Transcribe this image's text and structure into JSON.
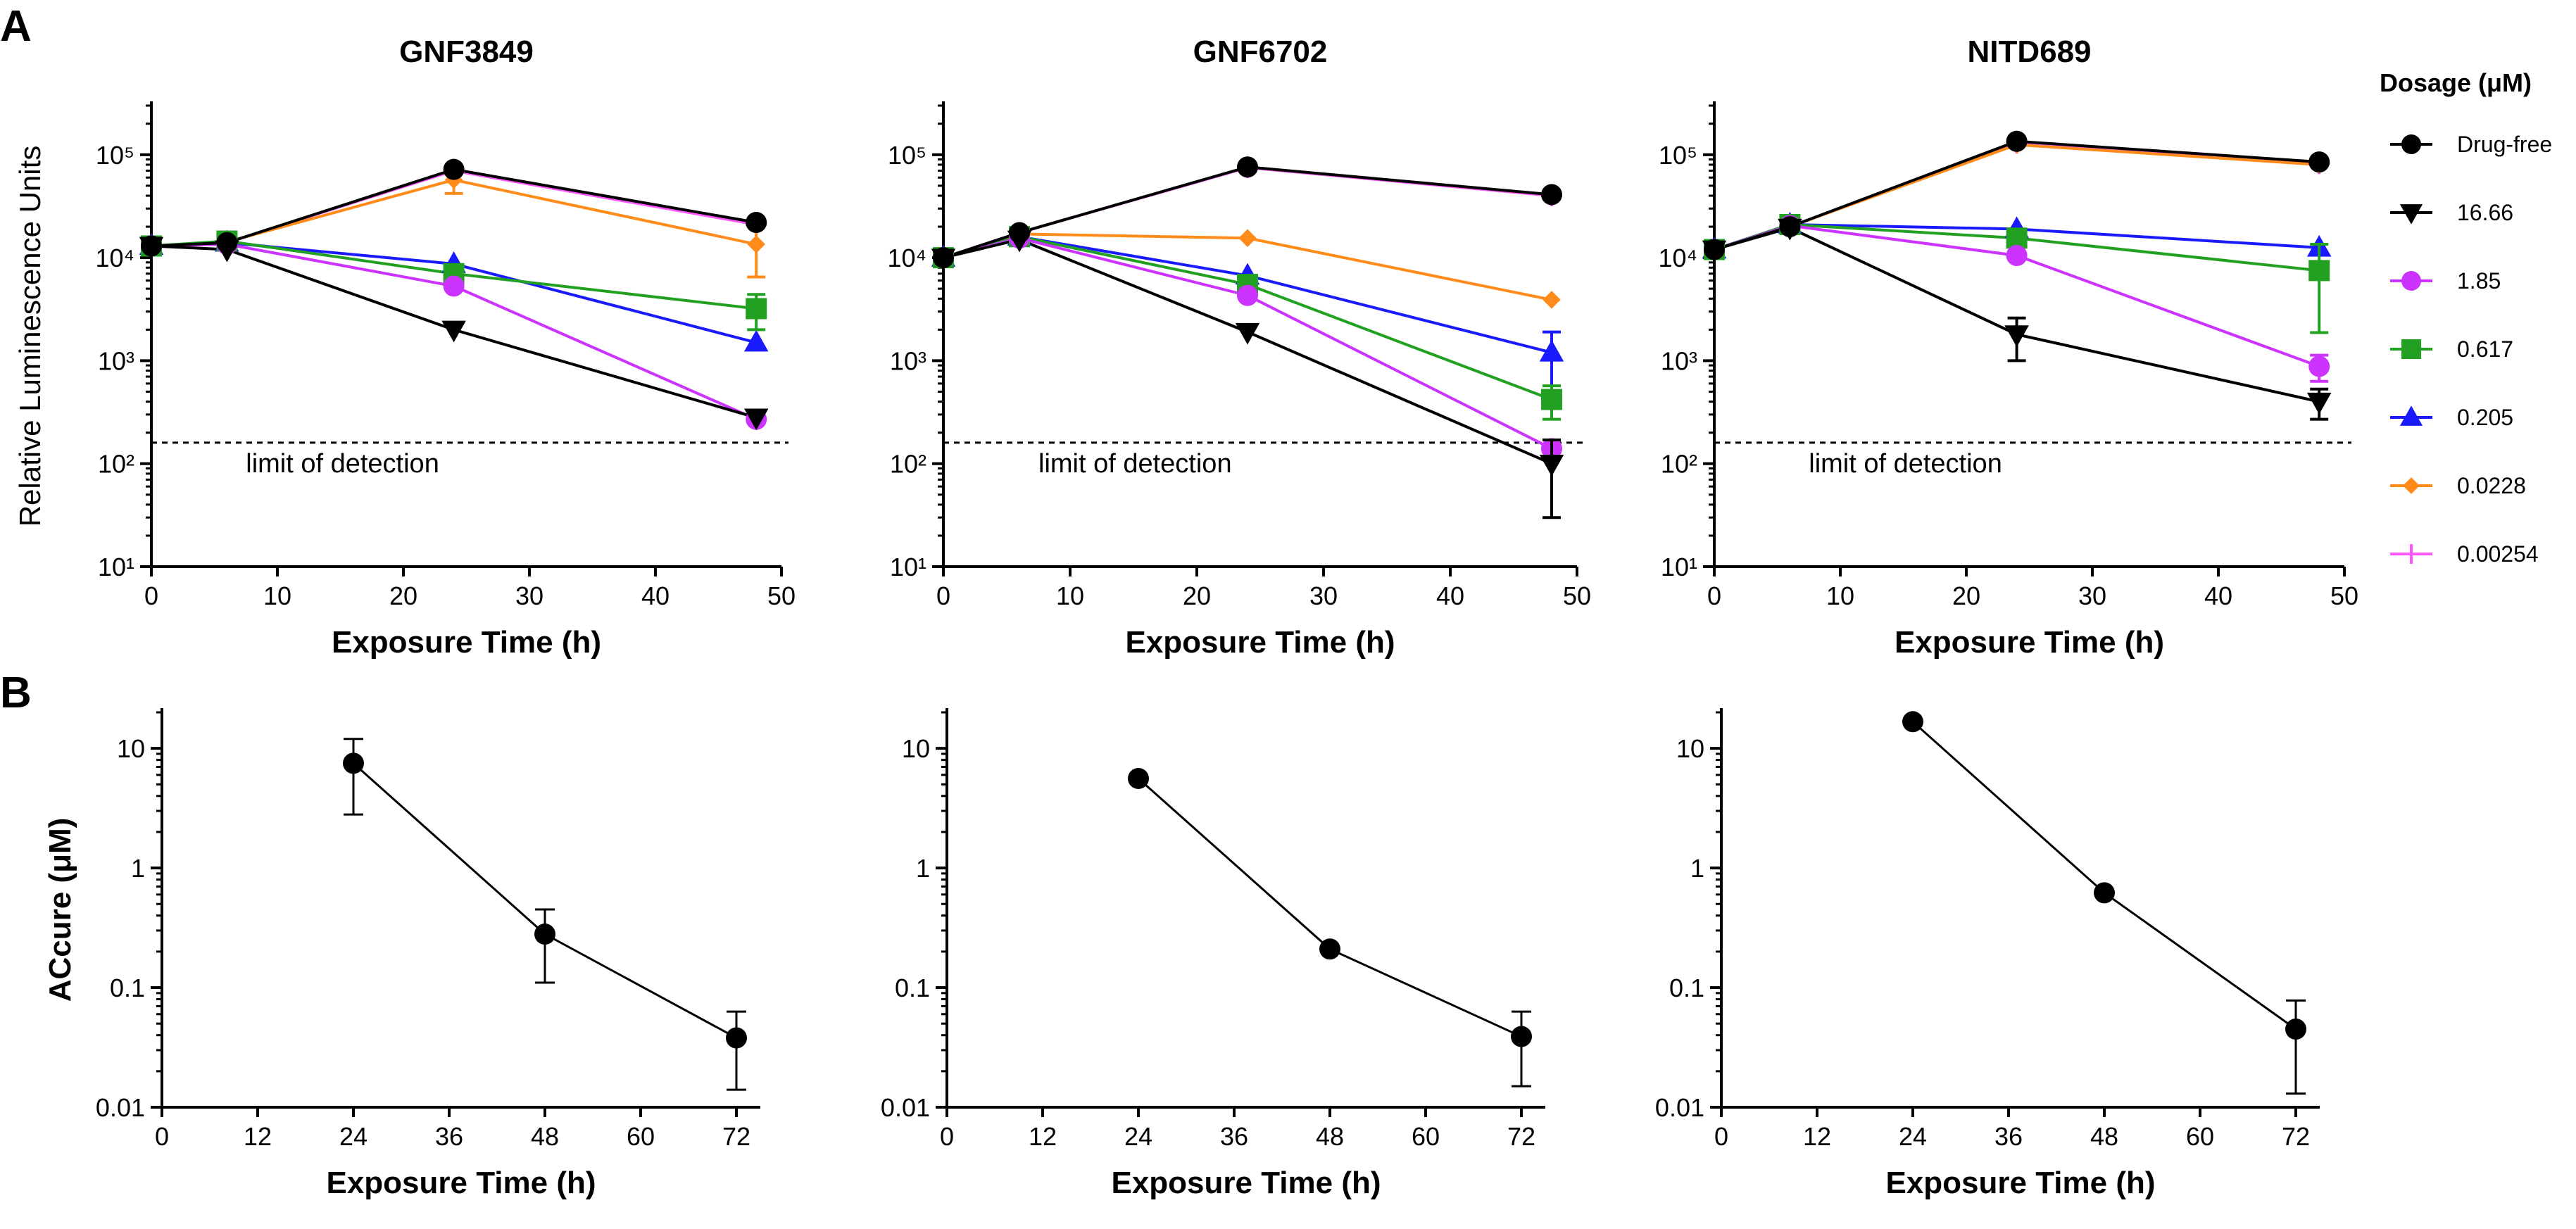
{
  "figure": {
    "panel_A_label": "A",
    "panel_B_label": "B",
    "legend_title": "Dosage (μM)"
  },
  "series_styles": [
    {
      "name": "Drug-free",
      "color": "#000000",
      "marker": "circle"
    },
    {
      "name": "16.66",
      "color": "#000000",
      "marker": "triangle-down"
    },
    {
      "name": "1.85",
      "color": "#cc33ff",
      "marker": "circle"
    },
    {
      "name": "0.617",
      "color": "#22a022",
      "marker": "square"
    },
    {
      "name": "0.205",
      "color": "#1a1aff",
      "marker": "triangle-up"
    },
    {
      "name": "0.0228",
      "color": "#ff8c1a",
      "marker": "diamond"
    },
    {
      "name": "0.00254",
      "color": "#ff55ff",
      "marker": "plus"
    }
  ],
  "chart_data": [
    {
      "type": "line",
      "panel": "A",
      "title": "GNF3849",
      "xlabel": "Exposure Time (h)",
      "ylabel": "Relative Luminescence Units",
      "yscale": "log",
      "xlim": [
        0,
        50
      ],
      "ylim": [
        10,
        300000
      ],
      "xticks": [
        "0",
        "10",
        "20",
        "30",
        "40",
        "50"
      ],
      "yticks": [
        "10¹",
        "10²",
        "10³",
        "10⁴",
        "10⁵"
      ],
      "ytick_values": [
        10,
        100,
        1000,
        10000,
        100000
      ],
      "limit_of_detection": {
        "value": 160,
        "label": "limit of detection"
      },
      "x": [
        0,
        6,
        24,
        48
      ],
      "series": [
        {
          "name": "Drug-free",
          "values": [
            13000,
            14000,
            72000,
            22000
          ],
          "err": [
            0,
            0,
            0,
            0
          ]
        },
        {
          "name": "16.66",
          "values": [
            13000,
            12000,
            2000,
            280
          ],
          "err": [
            0,
            0,
            0,
            0
          ]
        },
        {
          "name": "1.85",
          "values": [
            13000,
            13500,
            5300,
            270
          ],
          "err": [
            0,
            0,
            0,
            0
          ]
        },
        {
          "name": "0.617",
          "values": [
            13000,
            14500,
            7000,
            3200
          ],
          "err": [
            0,
            0,
            0,
            1200
          ]
        },
        {
          "name": "0.205",
          "values": [
            13000,
            14000,
            8700,
            1500
          ],
          "err": [
            0,
            0,
            0,
            0
          ]
        },
        {
          "name": "0.0228",
          "values": [
            13000,
            14200,
            57000,
            13500
          ],
          "err": [
            0,
            0,
            15000,
            7000
          ]
        },
        {
          "name": "0.00254",
          "values": [
            13000,
            14000,
            70000,
            21000
          ],
          "err": [
            0,
            0,
            0,
            0
          ]
        }
      ]
    },
    {
      "type": "line",
      "panel": "A",
      "title": "GNF6702",
      "xlabel": "Exposure Time (h)",
      "ylabel": "",
      "yscale": "log",
      "xlim": [
        0,
        50
      ],
      "ylim": [
        10,
        300000
      ],
      "xticks": [
        "0",
        "10",
        "20",
        "30",
        "40",
        "50"
      ],
      "yticks": [
        "10¹",
        "10²",
        "10³",
        "10⁴",
        "10⁵"
      ],
      "ytick_values": [
        10,
        100,
        1000,
        10000,
        100000
      ],
      "limit_of_detection": {
        "value": 160,
        "label": "limit of detection"
      },
      "x": [
        0,
        6,
        24,
        48
      ],
      "series": [
        {
          "name": "Drug-free",
          "values": [
            10000,
            17500,
            76000,
            41000
          ],
          "err": [
            0,
            0,
            0,
            0
          ]
        },
        {
          "name": "16.66",
          "values": [
            10000,
            15000,
            1900,
            100
          ],
          "err": [
            0,
            0,
            0,
            70
          ]
        },
        {
          "name": "1.85",
          "values": [
            10000,
            15500,
            4300,
            140
          ],
          "err": [
            0,
            0,
            0,
            0
          ]
        },
        {
          "name": "0.617",
          "values": [
            10000,
            16000,
            5500,
            420
          ],
          "err": [
            0,
            0,
            0,
            150
          ]
        },
        {
          "name": "0.205",
          "values": [
            10000,
            16000,
            6700,
            1200
          ],
          "err": [
            0,
            0,
            0,
            700
          ]
        },
        {
          "name": "0.0228",
          "values": [
            10000,
            17000,
            15500,
            3900
          ],
          "err": [
            0,
            0,
            0,
            0
          ]
        },
        {
          "name": "0.00254",
          "values": [
            10000,
            17500,
            75000,
            40000
          ],
          "err": [
            0,
            0,
            0,
            0
          ]
        }
      ]
    },
    {
      "type": "line",
      "panel": "A",
      "title": "NITD689",
      "xlabel": "Exposure Time (h)",
      "ylabel": "",
      "yscale": "log",
      "xlim": [
        0,
        50
      ],
      "ylim": [
        10,
        300000
      ],
      "xticks": [
        "0",
        "10",
        "20",
        "30",
        "40",
        "50"
      ],
      "yticks": [
        "10¹",
        "10²",
        "10³",
        "10⁴",
        "10⁵"
      ],
      "ytick_values": [
        10,
        100,
        1000,
        10000,
        100000
      ],
      "limit_of_detection": {
        "value": 160,
        "label": "limit of detection"
      },
      "x": [
        0,
        6,
        24,
        48
      ],
      "series": [
        {
          "name": "Drug-free",
          "values": [
            12000,
            20000,
            135000,
            85000
          ],
          "err": [
            0,
            0,
            0,
            0
          ]
        },
        {
          "name": "16.66",
          "values": [
            12000,
            19500,
            1800,
            400
          ],
          "err": [
            0,
            0,
            800,
            130
          ]
        },
        {
          "name": "1.85",
          "values": [
            12000,
            20500,
            10500,
            880
          ],
          "err": [
            0,
            0,
            0,
            250
          ]
        },
        {
          "name": "0.617",
          "values": [
            12000,
            21000,
            15500,
            7500
          ],
          "err": [
            0,
            0,
            0,
            6000
          ]
        },
        {
          "name": "0.205",
          "values": [
            12000,
            21000,
            19000,
            12500
          ],
          "err": [
            0,
            0,
            0,
            0
          ]
        },
        {
          "name": "0.0228",
          "values": [
            12000,
            20000,
            125000,
            80000
          ],
          "err": [
            0,
            0,
            0,
            0
          ]
        },
        {
          "name": "0.00254",
          "values": [
            12000,
            20000,
            130000,
            82000
          ],
          "err": [
            0,
            0,
            0,
            0
          ]
        }
      ]
    },
    {
      "type": "line",
      "panel": "B",
      "title": "",
      "xlabel": "Exposure Time (h)",
      "ylabel": "ACcure (μM)",
      "yscale": "log",
      "xlim": [
        0,
        75
      ],
      "ylim": [
        0.01,
        20
      ],
      "xticks": [
        "0",
        "12",
        "24",
        "36",
        "48",
        "60",
        "72"
      ],
      "yticks": [
        "0.01",
        "0.1",
        "1",
        "10"
      ],
      "ytick_values": [
        0.01,
        0.1,
        1,
        10
      ],
      "x": [
        24,
        48,
        72
      ],
      "series": [
        {
          "name": "ACcure",
          "values": [
            7.5,
            0.28,
            0.038
          ],
          "err_low": [
            2.8,
            0.11,
            0.014
          ],
          "err_high": [
            12,
            0.45,
            0.063
          ]
        }
      ]
    },
    {
      "type": "line",
      "panel": "B",
      "title": "",
      "xlabel": "Exposure Time (h)",
      "ylabel": "",
      "yscale": "log",
      "xlim": [
        0,
        75
      ],
      "ylim": [
        0.01,
        20
      ],
      "xticks": [
        "0",
        "12",
        "24",
        "36",
        "48",
        "60",
        "72"
      ],
      "yticks": [
        "0.01",
        "0.1",
        "1",
        "10"
      ],
      "ytick_values": [
        0.01,
        0.1,
        1,
        10
      ],
      "x": [
        24,
        48,
        72
      ],
      "series": [
        {
          "name": "ACcure",
          "values": [
            5.6,
            0.21,
            0.039
          ],
          "err_low": [
            5.6,
            0.21,
            0.015
          ],
          "err_high": [
            5.6,
            0.21,
            0.063
          ]
        }
      ]
    },
    {
      "type": "line",
      "panel": "B",
      "title": "",
      "xlabel": "Exposure Time (h)",
      "ylabel": "",
      "yscale": "log",
      "xlim": [
        0,
        75
      ],
      "ylim": [
        0.01,
        20
      ],
      "xticks": [
        "0",
        "12",
        "24",
        "36",
        "48",
        "60",
        "72"
      ],
      "yticks": [
        "0.01",
        "0.1",
        "1",
        "10"
      ],
      "ytick_values": [
        0.01,
        0.1,
        1,
        10
      ],
      "x": [
        24,
        48,
        72
      ],
      "series": [
        {
          "name": "ACcure",
          "values": [
            16.7,
            0.62,
            0.045
          ],
          "err_low": [
            16.7,
            0.62,
            0.013
          ],
          "err_high": [
            16.7,
            0.62,
            0.078
          ]
        }
      ]
    }
  ]
}
